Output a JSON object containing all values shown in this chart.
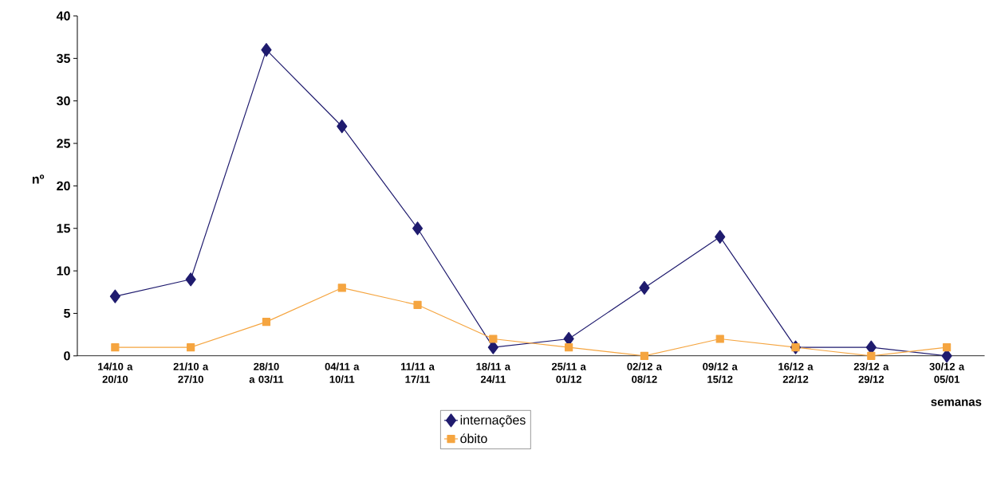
{
  "chart_data": {
    "type": "line",
    "xlabel": "semanas",
    "ylabel": "nº",
    "categories": [
      "14/10 a 20/10",
      "21/10 a 27/10",
      "28/10 a 03/11",
      "04/11 a 10/11",
      "11/11 a 17/11",
      "18/11 a 24/11",
      "25/11 a 01/12",
      "02/12 a 08/12",
      "09/12 a 15/12",
      "16/12 a 22/12",
      "23/12 a 29/12",
      "30/12 a 05/01"
    ],
    "series": [
      {
        "name": "internações",
        "color": "#1f1b6e",
        "marker": "diamond",
        "values": [
          7,
          9,
          36,
          27,
          15,
          1,
          2,
          8,
          14,
          1,
          1,
          0
        ]
      },
      {
        "name": "óbito",
        "color": "#f5a540",
        "marker": "square",
        "values": [
          1,
          1,
          4,
          8,
          6,
          2,
          1,
          0,
          2,
          1,
          0,
          1
        ]
      }
    ],
    "ylim": [
      0,
      40
    ],
    "yticks": [
      0,
      5,
      10,
      15,
      20,
      25,
      30,
      35,
      40
    ],
    "grid": false,
    "legend": "bottom"
  }
}
